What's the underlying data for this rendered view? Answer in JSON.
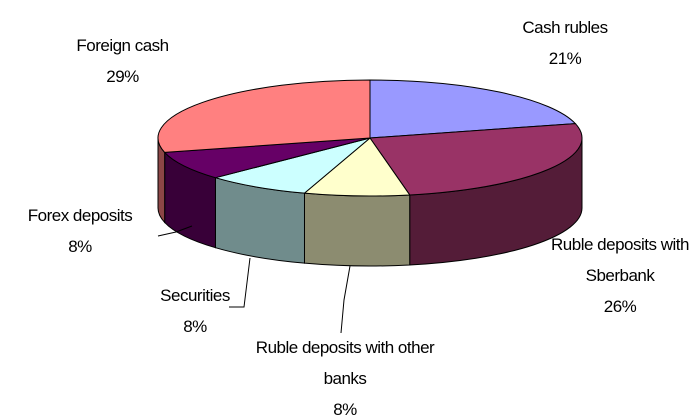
{
  "chart_data": {
    "type": "pie",
    "three_d": true,
    "categories": [
      "Cash rubles",
      "Ruble deposits with Sberbank",
      "Ruble deposits with other banks",
      "Securities",
      "Forex deposits",
      "Foreign cash"
    ],
    "values": [
      21,
      26,
      8,
      8,
      8,
      29
    ],
    "value_labels": [
      "21%",
      "26%",
      "8%",
      "8%",
      "8%",
      "29%"
    ],
    "colors": [
      "#9999ff",
      "#993366",
      "#ffffcc",
      "#ccffff",
      "#660066",
      "#ff8080"
    ]
  }
}
